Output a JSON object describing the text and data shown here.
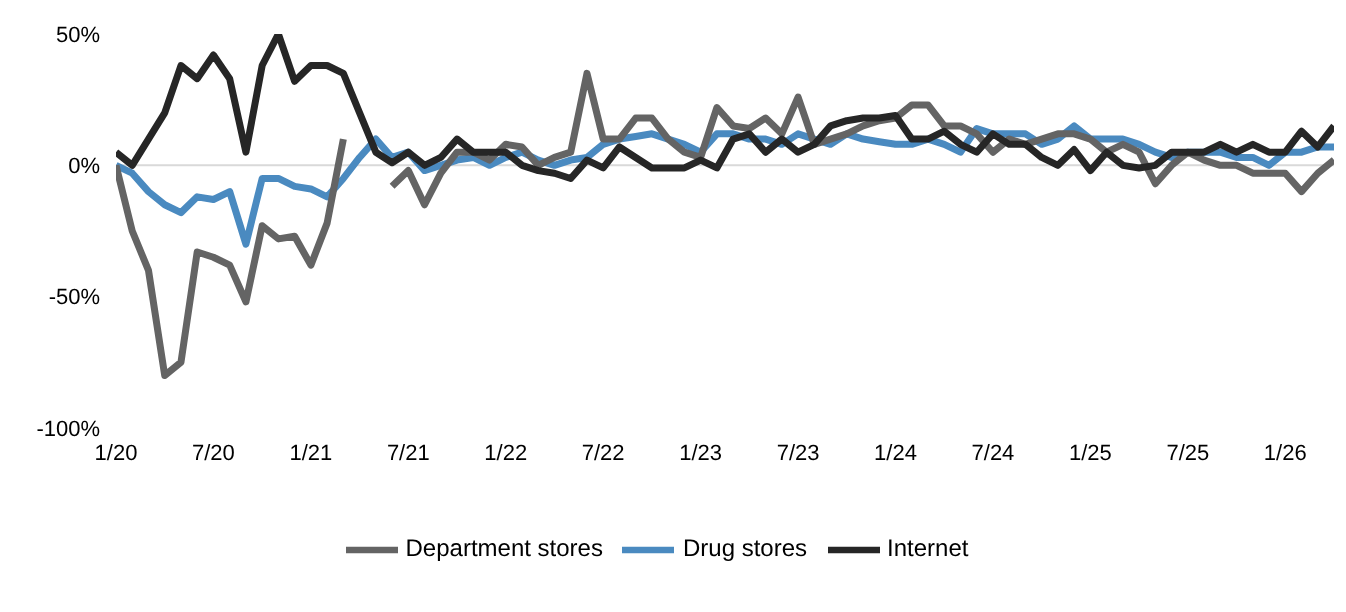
{
  "chart_data": {
    "type": "line",
    "x": [
      "2020-01",
      "2020-02",
      "2020-03",
      "2020-04",
      "2020-05",
      "2020-06",
      "2020-07",
      "2020-08",
      "2020-09",
      "2020-10",
      "2020-11",
      "2020-12",
      "2021-01",
      "2021-02",
      "2021-03",
      "2021-04",
      "2021-05",
      "2021-06",
      "2021-07",
      "2021-08",
      "2021-09",
      "2021-10",
      "2021-11",
      "2021-12",
      "2022-01",
      "2022-02",
      "2022-03",
      "2022-04",
      "2022-05",
      "2022-06",
      "2022-07",
      "2022-08",
      "2022-09",
      "2022-10",
      "2022-11",
      "2022-12",
      "2023-01",
      "2023-02",
      "2023-03",
      "2023-04",
      "2023-05",
      "2023-06",
      "2023-07",
      "2023-08",
      "2023-09",
      "2023-10",
      "2023-11",
      "2023-12",
      "2024-01",
      "2024-02",
      "2024-03",
      "2024-04",
      "2024-05",
      "2024-06",
      "2024-07",
      "2024-08",
      "2024-09",
      "2024-10",
      "2024-11",
      "2024-12",
      "2025-01",
      "2025-02",
      "2025-03",
      "2025-04",
      "2025-05",
      "2025-06",
      "2025-07",
      "2025-08",
      "2025-09",
      "2025-10",
      "2025-11",
      "2025-12",
      "2026-01",
      "2026-02",
      "2026-03",
      "2026-04"
    ],
    "series": [
      {
        "name": "Drug stores",
        "color": "#4a8ac0",
        "values": [
          0,
          -3,
          -10,
          -15,
          -18,
          -12,
          -13,
          -10,
          -30,
          -5,
          -5,
          -8,
          -9,
          -12,
          -5,
          3,
          10,
          3,
          5,
          -2,
          0,
          2,
          3,
          0,
          3,
          5,
          2,
          0,
          2,
          3,
          8,
          10,
          11,
          12,
          10,
          8,
          5,
          12,
          12,
          10,
          10,
          8,
          12,
          10,
          8,
          12,
          10,
          9,
          8,
          8,
          10,
          8,
          5,
          14,
          12,
          12,
          12,
          8,
          10,
          15,
          10,
          10,
          10,
          8,
          5,
          3,
          5,
          5,
          5,
          3,
          3,
          0,
          5,
          5,
          7,
          7
        ]
      },
      {
        "name": "Department stores",
        "color": "#646464",
        "values": [
          0,
          -25,
          -40,
          -80,
          -75,
          -33,
          -35,
          -38,
          -52,
          -23,
          -28,
          -27,
          -38,
          -22,
          10,
          null,
          null,
          -8,
          -2,
          -15,
          -3,
          5,
          5,
          2,
          8,
          7,
          0,
          3,
          5,
          35,
          10,
          10,
          18,
          18,
          10,
          5,
          3,
          22,
          15,
          14,
          18,
          12,
          26,
          8,
          10,
          12,
          15,
          17,
          18,
          23,
          23,
          15,
          15,
          12,
          5,
          10,
          8,
          10,
          12,
          12,
          10,
          5,
          8,
          5,
          -7,
          0,
          5,
          2,
          0,
          0,
          -3,
          -3,
          -3,
          -10,
          -3,
          2
        ]
      },
      {
        "name": "Internet",
        "color": "#262626",
        "values": [
          5,
          0,
          10,
          20,
          38,
          33,
          42,
          33,
          5,
          38,
          50,
          32,
          38,
          38,
          35,
          20,
          5,
          1,
          5,
          0,
          3,
          10,
          5,
          5,
          5,
          0,
          -2,
          -3,
          -5,
          2,
          -1,
          7,
          3,
          -1,
          -1,
          -1,
          2,
          -1,
          10,
          12,
          5,
          10,
          5,
          8,
          15,
          17,
          18,
          18,
          19,
          10,
          10,
          13,
          8,
          5,
          12,
          8,
          8,
          3,
          0,
          6,
          -2,
          5,
          0,
          -1,
          0,
          5,
          5,
          5,
          8,
          5,
          8,
          5,
          5,
          13,
          7,
          15
        ]
      }
    ],
    "xlim": [
      "2020-01",
      "2026-04"
    ],
    "xticks": [
      {
        "value": "2020-01",
        "label": "1/20"
      },
      {
        "value": "2020-07",
        "label": "7/20"
      },
      {
        "value": "2021-01",
        "label": "1/21"
      },
      {
        "value": "2021-07",
        "label": "7/21"
      },
      {
        "value": "2022-01",
        "label": "1/22"
      },
      {
        "value": "2022-07",
        "label": "7/22"
      },
      {
        "value": "2023-01",
        "label": "1/23"
      },
      {
        "value": "2023-07",
        "label": "7/23"
      },
      {
        "value": "2024-01",
        "label": "1/24"
      },
      {
        "value": "2024-07",
        "label": "7/24"
      },
      {
        "value": "2025-01",
        "label": "1/25"
      },
      {
        "value": "2025-07",
        "label": "7/25"
      },
      {
        "value": "2026-01",
        "label": "1/26"
      }
    ],
    "ylim": [
      -100,
      50
    ],
    "yticks": [
      {
        "value": -100,
        "label": "-100%"
      },
      {
        "value": -50,
        "label": "-50%"
      },
      {
        "value": 0,
        "label": "0%"
      },
      {
        "value": 50,
        "label": "50%"
      }
    ],
    "ref_lines": [
      {
        "axis": "y",
        "value": 0,
        "color": "#d9d9d9"
      }
    ],
    "legend": "bottom",
    "grid": false,
    "marker": "none",
    "line_style": "solid"
  }
}
